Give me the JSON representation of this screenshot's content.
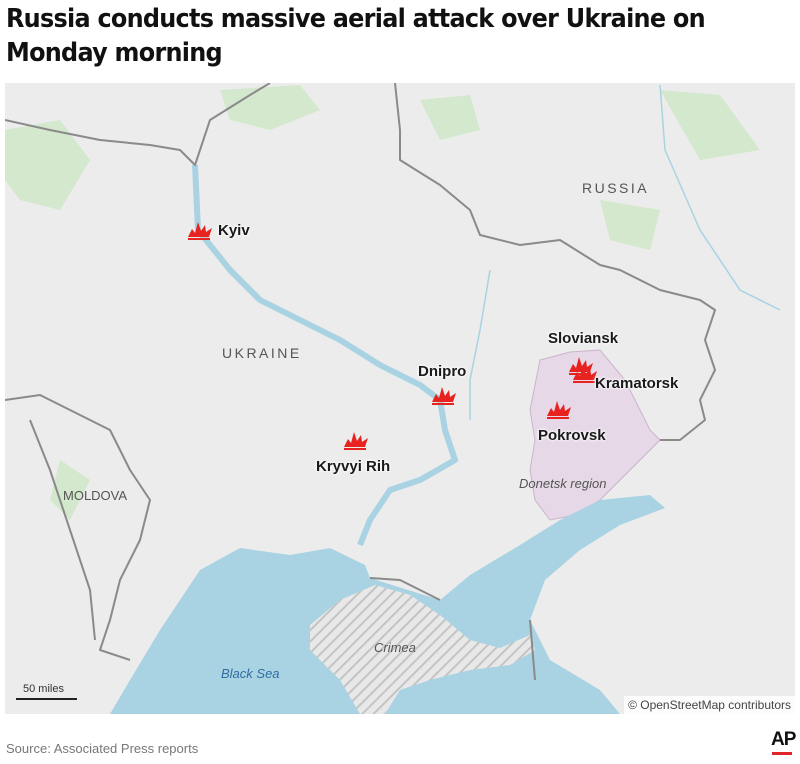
{
  "title": "Russia conducts massive aerial attack over Ukraine on Monday morning",
  "map": {
    "countries": [
      "RUSSIA",
      "UKRAINE",
      "MOLDOVA"
    ],
    "cities": [
      {
        "name": "Kyiv",
        "icon": "explosion-icon"
      },
      {
        "name": "Dnipro",
        "icon": "explosion-icon"
      },
      {
        "name": "Kryvyi Rih",
        "icon": "explosion-icon"
      },
      {
        "name": "Sloviansk",
        "icon": "explosion-icon"
      },
      {
        "name": "Kramatorsk",
        "icon": "explosion-icon"
      },
      {
        "name": "Pokrovsk",
        "icon": "explosion-icon"
      }
    ],
    "region": "Donetsk region",
    "water": [
      "Black Sea"
    ],
    "area": "Crimea",
    "scale": "50 miles",
    "attribution": "© OpenStreetMap contributors",
    "colors": {
      "land": "#ececec",
      "water": "#a9d3e3",
      "region": "#e6d8e6",
      "border": "#8a8a8a",
      "explosion": "#e8231f",
      "green": "#cfe6c6"
    }
  },
  "footer": {
    "source": "Source: Associated Press reports",
    "logo": "AP"
  }
}
